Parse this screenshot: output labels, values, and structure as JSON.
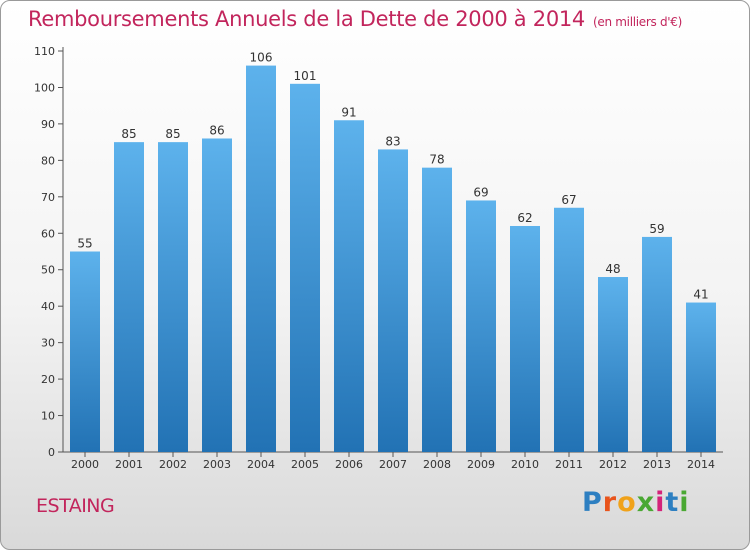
{
  "title": "Remboursements Annuels de la Dette de 2000 à 2014",
  "unit": "(en milliers d'€)",
  "commune": "ESTAING",
  "brand": "Proxiti",
  "colors": {
    "title": "#c2255c",
    "bar_top": "#5db2ec",
    "bar_bottom": "#2272b4",
    "brand_letters": [
      "#2d7fc1",
      "#e8541c",
      "#f0a21a",
      "#4aa833",
      "#d4237a",
      "#2d7fc1",
      "#4aa833"
    ]
  },
  "chart_data": {
    "type": "bar",
    "title": "Remboursements Annuels de la Dette de 2000 à 2014",
    "categories": [
      "2000",
      "2001",
      "2002",
      "2003",
      "2004",
      "2005",
      "2006",
      "2007",
      "2008",
      "2009",
      "2010",
      "2011",
      "2012",
      "2013",
      "2014"
    ],
    "values": [
      55,
      85,
      85,
      86,
      106,
      101,
      91,
      83,
      78,
      69,
      62,
      67,
      48,
      59,
      41
    ],
    "data_labels": [
      "55",
      "85",
      "85",
      "86",
      "106",
      "101",
      "91",
      "83",
      "78",
      "69",
      "62",
      "67",
      "48",
      "59",
      "41"
    ],
    "yticks": [
      "0",
      "10",
      "20",
      "30",
      "40",
      "50",
      "60",
      "70",
      "80",
      "90",
      "100",
      "110"
    ],
    "ylim": [
      0,
      110
    ],
    "xlabel": "",
    "ylabel": "",
    "grid": false,
    "legend": "none"
  }
}
